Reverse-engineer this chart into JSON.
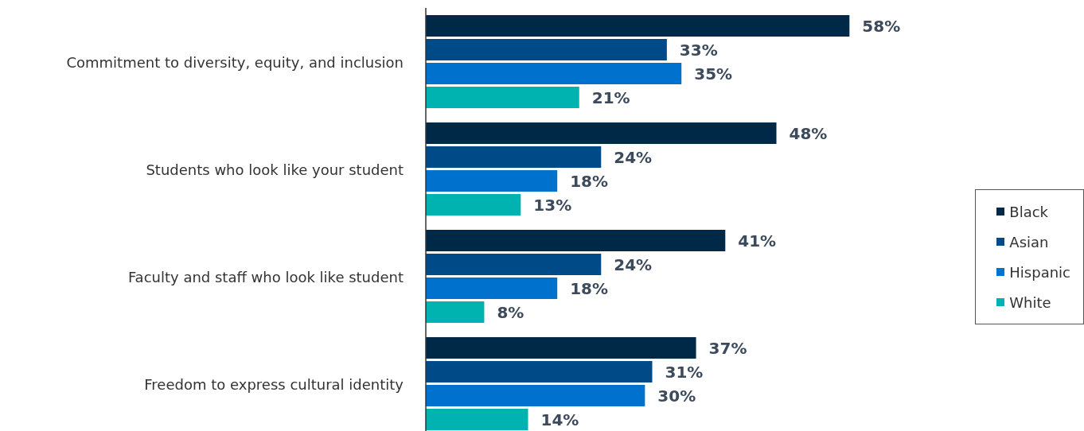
{
  "chart_data": {
    "type": "bar",
    "orientation": "horizontal",
    "categories": [
      "Commitment to diversity, equity, and inclusion",
      "Students who look like your student",
      "Faculty and staff who look like student",
      "Freedom to express cultural identity"
    ],
    "series": [
      {
        "name": "Black",
        "color": "#002947",
        "values": [
          58,
          48,
          41,
          37
        ],
        "value_labels": [
          "58%",
          "48%",
          "41%",
          "37%"
        ]
      },
      {
        "name": "Asian",
        "color": "#004b87",
        "values": [
          33,
          24,
          24,
          31
        ],
        "value_labels": [
          "33%",
          "24%",
          "24%",
          "31%"
        ]
      },
      {
        "name": "Hispanic",
        "color": "#0072ce",
        "values": [
          35,
          18,
          18,
          30
        ],
        "value_labels": [
          "35%",
          "18%",
          "18%",
          "30%"
        ]
      },
      {
        "name": "White",
        "color": "#00b2b0",
        "values": [
          21,
          13,
          8,
          14
        ],
        "value_labels": [
          "21%",
          "13%",
          "8%",
          "14%"
        ]
      }
    ],
    "legend": "right"
  }
}
